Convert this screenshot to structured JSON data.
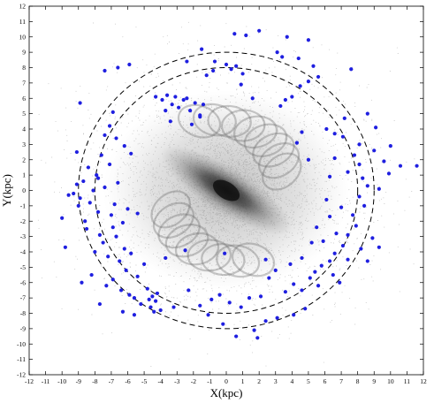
{
  "chart_data": {
    "type": "scatter",
    "title": "",
    "xlabel": "X(kpc)",
    "ylabel": "Y(kpc)",
    "xlim": [
      -12,
      12
    ],
    "ylim": [
      -12,
      12
    ],
    "xticks": [
      -12,
      -11,
      -10,
      -9,
      -8,
      -7,
      -6,
      -5,
      -4,
      -3,
      -2,
      -1,
      0,
      1,
      2,
      3,
      4,
      5,
      6,
      7,
      8,
      9,
      10,
      11,
      12
    ],
    "yticks": [
      -12,
      -11,
      -10,
      -9,
      -8,
      -7,
      -6,
      -5,
      -4,
      -3,
      -2,
      -1,
      0,
      1,
      2,
      3,
      4,
      5,
      6,
      7,
      8,
      9,
      10,
      11,
      12
    ],
    "grid": false,
    "circles": [
      {
        "name": "",
        "radius": 8,
        "style": "dashed",
        "color": "#000000"
      },
      {
        "name": "",
        "radius": 9,
        "style": "dashed",
        "color": "#000000"
      }
    ],
    "background_density": {
      "description_visible": false,
      "shape": "barred spiral",
      "color": "#555555"
    },
    "series": [
      {
        "marker_color": "#1f1fe0",
        "points": [
          [
            -10.0,
            -1.8
          ],
          [
            -9.8,
            -3.7
          ],
          [
            -9.6,
            -0.3
          ],
          [
            -9.3,
            -0.2
          ],
          [
            -9.1,
            0.4
          ],
          [
            -9.0,
            -1.0
          ],
          [
            -8.9,
            -0.5
          ],
          [
            -8.8,
            -6.0
          ],
          [
            -8.7,
            0.6
          ],
          [
            -8.6,
            -2.0
          ],
          [
            -8.5,
            -2.5
          ],
          [
            -8.4,
            1.5
          ],
          [
            -8.3,
            -0.8
          ],
          [
            -8.2,
            -5.5
          ],
          [
            -8.1,
            0.0
          ],
          [
            -8.0,
            -4.0
          ],
          [
            -7.9,
            1.0
          ],
          [
            -7.8,
            -1.4
          ],
          [
            -7.8,
            0.8
          ],
          [
            -7.7,
            -2.9
          ],
          [
            -7.6,
            2.3
          ],
          [
            -7.5,
            -3.4
          ],
          [
            -7.4,
            0.2
          ],
          [
            -7.3,
            -6.2
          ],
          [
            -7.2,
            -4.3
          ],
          [
            -7.1,
            1.7
          ],
          [
            -7.0,
            -1.6
          ],
          [
            -6.9,
            -2.4
          ],
          [
            -6.9,
            -5.8
          ],
          [
            -6.8,
            -0.9
          ],
          [
            -6.7,
            -3.0
          ],
          [
            -6.6,
            0.5
          ],
          [
            -6.5,
            -4.6
          ],
          [
            -6.4,
            -6.5
          ],
          [
            -6.3,
            -2.1
          ],
          [
            -6.2,
            -3.8
          ],
          [
            -6.1,
            -5.2
          ],
          [
            -6.0,
            -1.2
          ],
          [
            -5.9,
            -6.8
          ],
          [
            -5.8,
            -4.1
          ],
          [
            -5.6,
            -7.0
          ],
          [
            -5.4,
            -5.6
          ],
          [
            -5.2,
            -7.4
          ],
          [
            -5.0,
            -4.8
          ],
          [
            -4.8,
            -6.4
          ],
          [
            -4.7,
            -7.1
          ],
          [
            -4.6,
            -7.6
          ],
          [
            -4.5,
            -6.9
          ],
          [
            -4.4,
            -7.9
          ],
          [
            -4.3,
            -7.2
          ],
          [
            -4.2,
            -6.7
          ],
          [
            -4.0,
            -7.8
          ],
          [
            -8.9,
            5.7
          ],
          [
            -7.4,
            7.8
          ],
          [
            -6.6,
            8.0
          ],
          [
            -5.9,
            8.2
          ],
          [
            -7.1,
            4.2
          ],
          [
            -6.7,
            3.4
          ],
          [
            -6.2,
            2.9
          ],
          [
            -5.8,
            2.4
          ],
          [
            -7.4,
            3.6
          ],
          [
            -6.9,
            5.1
          ],
          [
            -3.9,
            5.9
          ],
          [
            -3.6,
            6.2
          ],
          [
            -3.3,
            5.6
          ],
          [
            -3.1,
            6.1
          ],
          [
            -2.9,
            5.4
          ],
          [
            -2.6,
            5.9
          ],
          [
            -2.4,
            6.0
          ],
          [
            -2.2,
            5.2
          ],
          [
            -1.9,
            5.7
          ],
          [
            -1.6,
            4.9
          ],
          [
            -1.4,
            5.6
          ],
          [
            -3.7,
            5.2
          ],
          [
            -4.3,
            6.1
          ],
          [
            -3.4,
            4.5
          ],
          [
            -1.2,
            7.5
          ],
          [
            -0.8,
            7.8
          ],
          [
            0.0,
            8.2
          ],
          [
            0.3,
            7.9
          ],
          [
            0.6,
            8.1
          ],
          [
            1.0,
            7.6
          ],
          [
            0.9,
            6.9
          ],
          [
            0.5,
            10.2
          ],
          [
            1.2,
            10.1
          ],
          [
            2.0,
            10.4
          ],
          [
            3.1,
            9.0
          ],
          [
            3.4,
            8.7
          ],
          [
            3.7,
            10.0
          ],
          [
            4.4,
            8.6
          ],
          [
            5.0,
            9.8
          ],
          [
            5.3,
            8.1
          ],
          [
            5.6,
            7.4
          ],
          [
            5.0,
            7.1
          ],
          [
            4.5,
            6.8
          ],
          [
            4.0,
            6.1
          ],
          [
            3.3,
            5.5
          ],
          [
            3.6,
            5.9
          ],
          [
            -2.4,
            8.4
          ],
          [
            -1.5,
            9.2
          ],
          [
            -0.7,
            8.4
          ],
          [
            7.6,
            7.9
          ],
          [
            7.2,
            4.7
          ],
          [
            6.6,
            3.7
          ],
          [
            6.1,
            4.0
          ],
          [
            6.6,
            2.1
          ],
          [
            7.1,
            3.5
          ],
          [
            7.8,
            2.3
          ],
          [
            8.1,
            1.7
          ],
          [
            8.3,
            0.8
          ],
          [
            8.6,
            0.3
          ],
          [
            8.1,
            -0.4
          ],
          [
            8.4,
            -1.0
          ],
          [
            7.7,
            -1.6
          ],
          [
            7.9,
            -2.3
          ],
          [
            7.4,
            -2.9
          ],
          [
            7.1,
            -3.6
          ],
          [
            6.6,
            -4.1
          ],
          [
            6.3,
            -4.6
          ],
          [
            5.8,
            -4.9
          ],
          [
            5.4,
            -5.3
          ],
          [
            5.1,
            -5.7
          ],
          [
            5.6,
            -6.2
          ],
          [
            4.6,
            -6.5
          ],
          [
            4.1,
            -6.1
          ],
          [
            3.6,
            -6.6
          ],
          [
            8.9,
            -3.1
          ],
          [
            9.3,
            0.1
          ],
          [
            9.6,
            1.9
          ],
          [
            9.0,
            2.6
          ],
          [
            9.9,
            1.1
          ],
          [
            10.0,
            2.9
          ],
          [
            10.6,
            1.6
          ],
          [
            11.6,
            1.6
          ],
          [
            9.1,
            4.1
          ],
          [
            8.6,
            5.0
          ],
          [
            8.1,
            3.0
          ],
          [
            7.4,
            1.2
          ],
          [
            6.3,
            0.9
          ],
          [
            6.1,
            -0.6
          ],
          [
            6.3,
            -1.7
          ],
          [
            5.5,
            -2.4
          ],
          [
            5.9,
            -3.3
          ],
          [
            6.7,
            -2.8
          ],
          [
            7.0,
            -1.1
          ],
          [
            6.5,
            -5.5
          ],
          [
            6.9,
            -6.0
          ],
          [
            7.4,
            -4.5
          ],
          [
            8.2,
            -3.8
          ],
          [
            5.2,
            -3.4
          ],
          [
            4.6,
            -4.4
          ],
          [
            3.9,
            -4.8
          ],
          [
            3.0,
            -5.2
          ],
          [
            2.6,
            -5.7
          ],
          [
            2.1,
            -6.9
          ],
          [
            1.4,
            -7.0
          ],
          [
            0.9,
            -7.6
          ],
          [
            0.2,
            -7.3
          ],
          [
            -0.4,
            -6.8
          ],
          [
            -0.9,
            -7.1
          ],
          [
            -1.6,
            -7.5
          ],
          [
            -2.3,
            -6.5
          ],
          [
            -1.1,
            -8.1
          ],
          [
            -0.2,
            -8.7
          ],
          [
            0.6,
            -9.5
          ],
          [
            1.7,
            -9.1
          ],
          [
            1.9,
            -9.6
          ],
          [
            2.4,
            -8.5
          ],
          [
            3.1,
            -8.3
          ],
          [
            4.1,
            -8.1
          ],
          [
            4.8,
            -7.7
          ],
          [
            -0.1,
            -4.1
          ],
          [
            2.4,
            -4.5
          ],
          [
            -5.4,
            -1.5
          ],
          [
            -3.7,
            -4.4
          ],
          [
            -2.5,
            -3.9
          ],
          [
            -1.6,
            4.8
          ],
          [
            -2.1,
            4.3
          ],
          [
            1.6,
            6.0
          ],
          [
            4.6,
            3.8
          ],
          [
            4.3,
            3.1
          ],
          [
            5.0,
            2.0
          ],
          [
            -9.1,
            2.5
          ],
          [
            -7.7,
            -7.4
          ],
          [
            -6.3,
            -7.9
          ],
          [
            -5.6,
            -8.1
          ],
          [
            -3.2,
            -7.6
          ],
          [
            8.6,
            -4.6
          ],
          [
            9.3,
            -3.7
          ]
        ]
      }
    ]
  }
}
